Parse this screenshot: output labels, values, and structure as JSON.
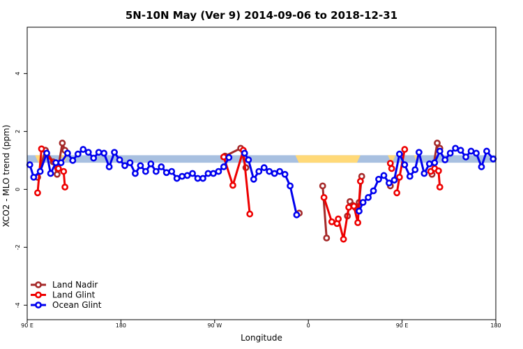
{
  "chart_data": {
    "type": "line",
    "title": "5N-10N May (Ver 9)   2014-09-06 to 2018-12-31",
    "xlabel": "Longitude",
    "ylabel": "XCO2 - MLO trend (ppm)",
    "xlim": [
      0,
      360
    ],
    "ylim": [
      -4.5,
      5.6
    ],
    "x_ticks": [
      {
        "value": 0,
        "label": "90 E"
      },
      {
        "value": 72,
        "label": "180"
      },
      {
        "value": 144,
        "label": "90 W"
      },
      {
        "value": 216,
        "label": "0"
      },
      {
        "value": 288,
        "label": "90 E"
      },
      {
        "value": 360,
        "label": "180"
      }
    ],
    "y_ticks": [
      {
        "value": -4,
        "label": "-4"
      },
      {
        "value": -2,
        "label": "-2"
      },
      {
        "value": 0,
        "label": "0"
      },
      {
        "value": 2,
        "label": "2"
      },
      {
        "value": 4,
        "label": "4"
      }
    ],
    "grid": false,
    "legend_position": "bottom-left",
    "band": {
      "y_low": 0.92,
      "y_high": 1.18,
      "base_color": "#a8c0e0",
      "land_color": "#ffd978",
      "land_segments": [
        [
          6,
          12
        ],
        [
          26,
          31
        ],
        [
          206,
          256
        ],
        [
          277,
          283
        ],
        [
          297,
          302
        ]
      ]
    },
    "series": [
      {
        "name": "Land Nadir",
        "color": "#a52a2a",
        "segments": [
          [
            [
              8,
              0.42
            ],
            [
              14,
              1.35
            ],
            [
              20,
              0.95
            ],
            [
              23,
              0.52
            ],
            [
              27,
              1.6
            ],
            [
              29,
              1.35
            ]
          ],
          [
            [
              152,
              1.15
            ],
            [
              164,
              1.42
            ],
            [
              168,
              0.75
            ]
          ],
          [
            [
              209,
              -0.82
            ]
          ],
          [
            [
              227,
              0.12
            ],
            [
              230,
              -1.68
            ]
          ],
          [
            [
              246,
              -0.92
            ],
            [
              248,
              -0.42
            ],
            [
              250,
              -0.55
            ],
            [
              252,
              -0.62
            ],
            [
              255,
              -0.45
            ],
            [
              257,
              0.45
            ]
          ],
          [
            [
              279,
              0.12
            ]
          ],
          [
            [
              311,
              0.52
            ],
            [
              315,
              1.6
            ],
            [
              317,
              1.42
            ]
          ]
        ]
      },
      {
        "name": "Land Glint",
        "color": "#ee0000",
        "segments": [
          [
            [
              8,
              -0.12
            ],
            [
              11,
              1.4
            ],
            [
              24,
              0.72
            ],
            [
              28,
              0.62
            ],
            [
              29,
              0.08
            ]
          ],
          [
            [
              151,
              1.12
            ],
            [
              158,
              0.14
            ],
            [
              166,
              1.35
            ],
            [
              171,
              -0.85
            ]
          ],
          [
            [
              228,
              -0.28
            ],
            [
              234,
              -1.12
            ],
            [
              238,
              -1.18
            ],
            [
              239,
              -1.02
            ],
            [
              243,
              -1.72
            ],
            [
              247,
              -0.62
            ],
            [
              251,
              -0.58
            ],
            [
              254,
              -1.15
            ],
            [
              256,
              0.28
            ]
          ],
          [
            [
              279,
              0.9
            ],
            [
              280,
              0.72
            ]
          ],
          [
            [
              284,
              -0.12
            ],
            [
              286,
              0.42
            ],
            [
              290,
              1.38
            ]
          ],
          [
            [
              310,
              0.62
            ],
            [
              313,
              0.72
            ],
            [
              316,
              0.64
            ],
            [
              317,
              0.08
            ]
          ]
        ]
      },
      {
        "name": "Ocean Glint",
        "color": "#0000ee",
        "segments": [
          [
            [
              2,
              0.85
            ],
            [
              5,
              0.42
            ],
            [
              10,
              0.62
            ],
            [
              15,
              1.25
            ],
            [
              18,
              0.55
            ],
            [
              22,
              0.92
            ],
            [
              26,
              0.92
            ],
            [
              31,
              1.25
            ],
            [
              35,
              1.0
            ],
            [
              39,
              1.22
            ],
            [
              43,
              1.38
            ],
            [
              47,
              1.28
            ],
            [
              51,
              1.08
            ],
            [
              55,
              1.28
            ],
            [
              59,
              1.25
            ],
            [
              63,
              0.78
            ],
            [
              67,
              1.28
            ],
            [
              71,
              1.02
            ],
            [
              75,
              0.82
            ],
            [
              79,
              0.92
            ],
            [
              83,
              0.55
            ],
            [
              87,
              0.82
            ],
            [
              91,
              0.62
            ],
            [
              95,
              0.88
            ],
            [
              99,
              0.62
            ],
            [
              103,
              0.78
            ],
            [
              107,
              0.58
            ],
            [
              111,
              0.62
            ],
            [
              115,
              0.38
            ],
            [
              119,
              0.45
            ],
            [
              123,
              0.48
            ],
            [
              127,
              0.55
            ],
            [
              131,
              0.38
            ],
            [
              135,
              0.38
            ],
            [
              139,
              0.55
            ],
            [
              143,
              0.55
            ],
            [
              147,
              0.62
            ],
            [
              151,
              0.78
            ],
            [
              155,
              1.1
            ]
          ],
          [
            [
              167,
              1.25
            ],
            [
              170,
              1.02
            ],
            [
              174,
              0.35
            ],
            [
              178,
              0.62
            ],
            [
              182,
              0.75
            ],
            [
              186,
              0.62
            ],
            [
              190,
              0.55
            ],
            [
              194,
              0.62
            ],
            [
              198,
              0.52
            ],
            [
              202,
              0.12
            ],
            [
              207,
              -0.88
            ]
          ],
          [
            [
              255,
              -0.75
            ],
            [
              258,
              -0.45
            ],
            [
              262,
              -0.28
            ],
            [
              266,
              -0.05
            ],
            [
              270,
              0.35
            ],
            [
              274,
              0.48
            ],
            [
              278,
              0.22
            ],
            [
              282,
              0.32
            ],
            [
              286,
              1.22
            ],
            [
              290,
              0.85
            ],
            [
              294,
              0.45
            ],
            [
              298,
              0.68
            ],
            [
              301,
              1.28
            ],
            [
              305,
              0.55
            ],
            [
              309,
              0.88
            ],
            [
              313,
              0.92
            ],
            [
              317,
              1.32
            ],
            [
              321,
              1.02
            ],
            [
              325,
              1.25
            ],
            [
              329,
              1.42
            ],
            [
              333,
              1.35
            ],
            [
              337,
              1.12
            ],
            [
              341,
              1.32
            ],
            [
              345,
              1.25
            ],
            [
              349,
              0.78
            ],
            [
              353,
              1.32
            ],
            [
              358,
              1.05
            ]
          ]
        ]
      }
    ]
  }
}
